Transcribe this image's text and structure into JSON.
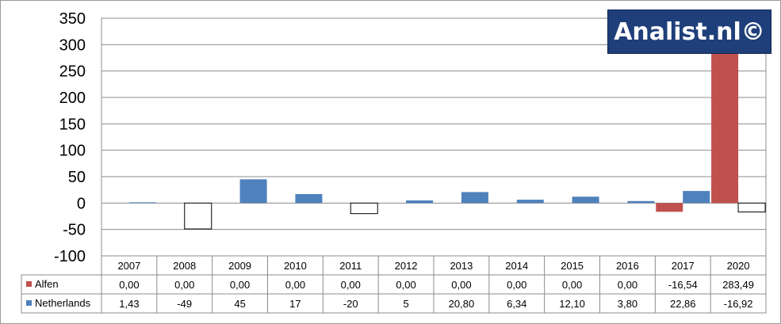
{
  "chart_data": {
    "type": "bar",
    "categories": [
      "2007",
      "2008",
      "2009",
      "2010",
      "2011",
      "2012",
      "2013",
      "2014",
      "2015",
      "2016",
      "2017",
      "2020"
    ],
    "series": [
      {
        "name": "Alfen",
        "color": "#c0504d",
        "values": [
          0,
          0,
          0,
          0,
          0,
          0,
          0,
          0,
          0,
          0,
          -16.54,
          283.49
        ],
        "labels": [
          "0,00",
          "0,00",
          "0,00",
          "0,00",
          "0,00",
          "0,00",
          "0,00",
          "0,00",
          "0,00",
          "0,00",
          "-16,54",
          "283,49"
        ]
      },
      {
        "name": "Netherlands",
        "color": "#4f81bd",
        "values": [
          1.43,
          -49,
          45,
          17,
          -20,
          5,
          20.8,
          6.34,
          12.1,
          3.8,
          22.86,
          -16.92
        ],
        "labels": [
          "1,43",
          "-49",
          "45",
          "17",
          "-20",
          "5",
          "20,80",
          "6,34",
          "12,10",
          "3,80",
          "22,86",
          "-16,92"
        ]
      }
    ],
    "negative_fill": "#ffffff",
    "ylim": [
      -100,
      350
    ],
    "yticks": [
      350,
      300,
      250,
      200,
      150,
      100,
      50,
      0,
      -50,
      -100
    ],
    "grid": true,
    "legend": "data-table-left",
    "title": "",
    "xlabel": "",
    "ylabel": ""
  },
  "watermark": "Analist.nl©"
}
